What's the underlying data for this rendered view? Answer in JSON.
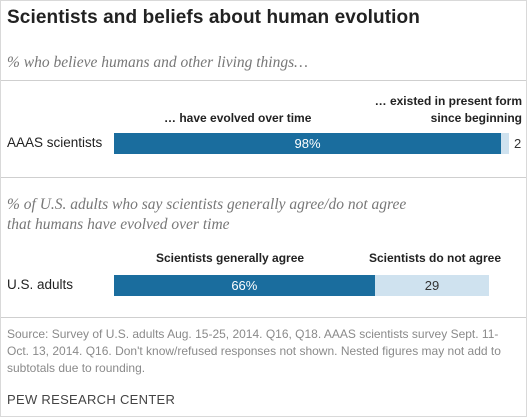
{
  "header": {
    "title": "Scientists and beliefs about human evolution"
  },
  "section1": {
    "subtitle": "% who believe humans and other living things…",
    "col1_label": "… have evolved over time",
    "col2_label_line1": "… existed in present form",
    "col2_label_line2": "since beginning",
    "row_label": "AAAS scientists",
    "value1_label": "98%",
    "value2_label": "2"
  },
  "section2": {
    "subtitle_line1": "% of U.S. adults who say scientists generally agree/do not agree",
    "subtitle_line2": "that humans have evolved over time",
    "col1_label": "Scientists generally agree",
    "col2_label": "Scientists do not agree",
    "row_label": "U.S. adults",
    "value1_label": "66%",
    "value2_label": "29"
  },
  "footer": {
    "source": "Source: Survey of U.S. adults Aug. 15-25, 2014. Q16, Q18. AAAS scientists survey Sept. 11-Oct. 13, 2014. Q16. Don't know/refused responses not shown. Nested figures may not add to subtotals due to rounding.",
    "credit": "PEW RESEARCH CENTER"
  },
  "colors": {
    "primary": "#1a6d9e",
    "secondary": "#cfe2ef"
  },
  "chart_data": [
    {
      "type": "bar",
      "orientation": "horizontal-stacked",
      "categories": [
        "AAAS scientists"
      ],
      "series": [
        {
          "name": "… have evolved over time",
          "values": [
            98
          ]
        },
        {
          "name": "… existed in present form since beginning",
          "values": [
            2
          ]
        }
      ],
      "xlim": [
        0,
        100
      ]
    },
    {
      "type": "bar",
      "orientation": "horizontal-stacked",
      "categories": [
        "U.S. adults"
      ],
      "series": [
        {
          "name": "Scientists generally agree",
          "values": [
            66
          ]
        },
        {
          "name": "Scientists do not agree",
          "values": [
            29
          ]
        }
      ],
      "xlim": [
        0,
        100
      ]
    }
  ]
}
